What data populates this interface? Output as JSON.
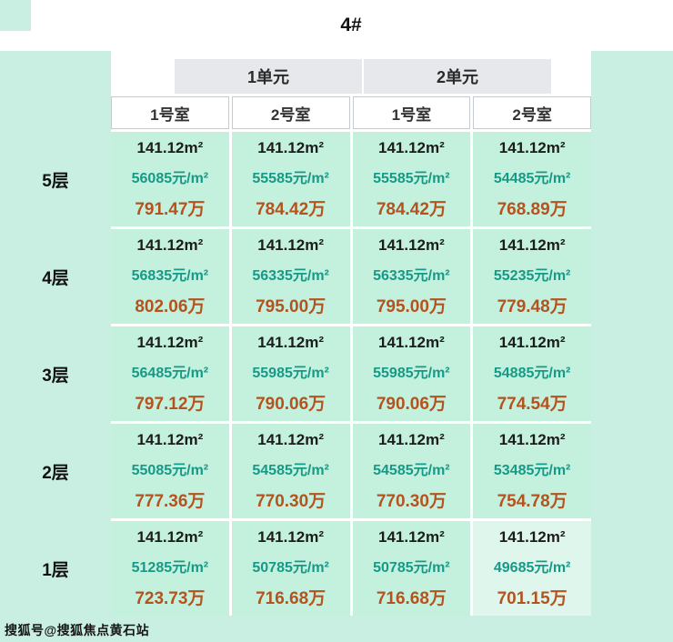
{
  "title": "4#",
  "units": [
    {
      "label": "1单元"
    },
    {
      "label": "2单元"
    }
  ],
  "room_headers": [
    "1号室",
    "2号室",
    "1号室",
    "2号室"
  ],
  "floors": [
    {
      "label": "5层",
      "cells": [
        {
          "area": "141.12m²",
          "unit_price": "56085元/m²",
          "total": "791.47万"
        },
        {
          "area": "141.12m²",
          "unit_price": "55585元/m²",
          "total": "784.42万"
        },
        {
          "area": "141.12m²",
          "unit_price": "55585元/m²",
          "total": "784.42万"
        },
        {
          "area": "141.12m²",
          "unit_price": "54485元/m²",
          "total": "768.89万"
        }
      ]
    },
    {
      "label": "4层",
      "cells": [
        {
          "area": "141.12m²",
          "unit_price": "56835元/m²",
          "total": "802.06万"
        },
        {
          "area": "141.12m²",
          "unit_price": "56335元/m²",
          "total": "795.00万"
        },
        {
          "area": "141.12m²",
          "unit_price": "56335元/m²",
          "total": "795.00万"
        },
        {
          "area": "141.12m²",
          "unit_price": "55235元/m²",
          "total": "779.48万"
        }
      ]
    },
    {
      "label": "3层",
      "cells": [
        {
          "area": "141.12m²",
          "unit_price": "56485元/m²",
          "total": "797.12万"
        },
        {
          "area": "141.12m²",
          "unit_price": "55985元/m²",
          "total": "790.06万"
        },
        {
          "area": "141.12m²",
          "unit_price": "55985元/m²",
          "total": "790.06万"
        },
        {
          "area": "141.12m²",
          "unit_price": "54885元/m²",
          "total": "774.54万"
        }
      ]
    },
    {
      "label": "2层",
      "cells": [
        {
          "area": "141.12m²",
          "unit_price": "55085元/m²",
          "total": "777.36万"
        },
        {
          "area": "141.12m²",
          "unit_price": "54585元/m²",
          "total": "770.30万"
        },
        {
          "area": "141.12m²",
          "unit_price": "54585元/m²",
          "total": "770.30万"
        },
        {
          "area": "141.12m²",
          "unit_price": "53485元/m²",
          "total": "754.78万"
        }
      ]
    },
    {
      "label": "1层",
      "cells": [
        {
          "area": "141.12m²",
          "unit_price": "51285元/m²",
          "total": "723.73万"
        },
        {
          "area": "141.12m²",
          "unit_price": "50785元/m²",
          "total": "716.68万"
        },
        {
          "area": "141.12m²",
          "unit_price": "50785元/m²",
          "total": "716.68万"
        },
        {
          "area": "141.12m²",
          "unit_price": "49685元/m²",
          "total": "701.15万"
        }
      ]
    }
  ],
  "watermark": "搜狐号@搜狐焦点黄石站",
  "colors": {
    "page_bg": "#c9efe3",
    "cell_bg": "#c3f1de",
    "cell_bg_highlight": "#def6ec",
    "tab_bg": "#e6e8ec",
    "header_border": "#c6cbd0",
    "area_color": "#1c1c1c",
    "price_color": "#169a87",
    "total_color": "#b4531e"
  },
  "chart_data": {
    "type": "table",
    "title": "4#",
    "column_groups": [
      "1单元",
      "2单元"
    ],
    "columns": [
      "1单元 1号室",
      "1单元 2号室",
      "2单元 1号室",
      "2单元 2号室"
    ],
    "row_labels": [
      "5层",
      "4层",
      "3层",
      "2层",
      "1层"
    ],
    "area_m2": 141.12,
    "unit_price_yuan_per_m2": [
      [
        56085,
        55585,
        55585,
        54485
      ],
      [
        56835,
        56335,
        56335,
        55235
      ],
      [
        56485,
        55985,
        55985,
        54885
      ],
      [
        55085,
        54585,
        54585,
        53485
      ],
      [
        51285,
        50785,
        50785,
        49685
      ]
    ],
    "total_price_wan": [
      [
        791.47,
        784.42,
        784.42,
        768.89
      ],
      [
        802.06,
        795.0,
        795.0,
        779.48
      ],
      [
        797.12,
        790.06,
        790.06,
        774.54
      ],
      [
        777.36,
        770.3,
        770.3,
        754.78
      ],
      [
        723.73,
        716.68,
        716.68,
        701.15
      ]
    ]
  }
}
